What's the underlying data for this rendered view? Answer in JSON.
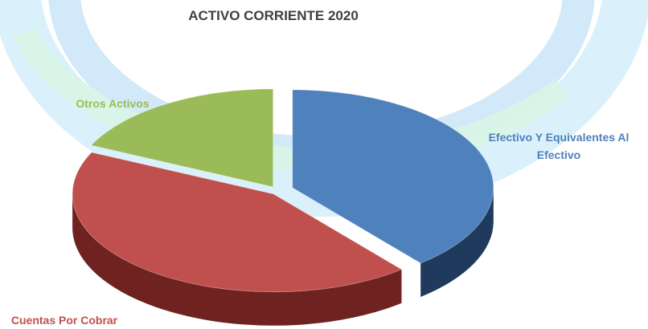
{
  "chart_data": {
    "type": "pie",
    "title": "ACTIVO CORRIENTE 2020",
    "categories": [
      "Efectivo Y Equivalentes Al Efectivo",
      "Cuentas Por Cobrar",
      "Otros Activos"
    ],
    "values": [
      39,
      43,
      18
    ],
    "colors": [
      "#4f81bd",
      "#c0504d",
      "#9bbb59"
    ]
  }
}
